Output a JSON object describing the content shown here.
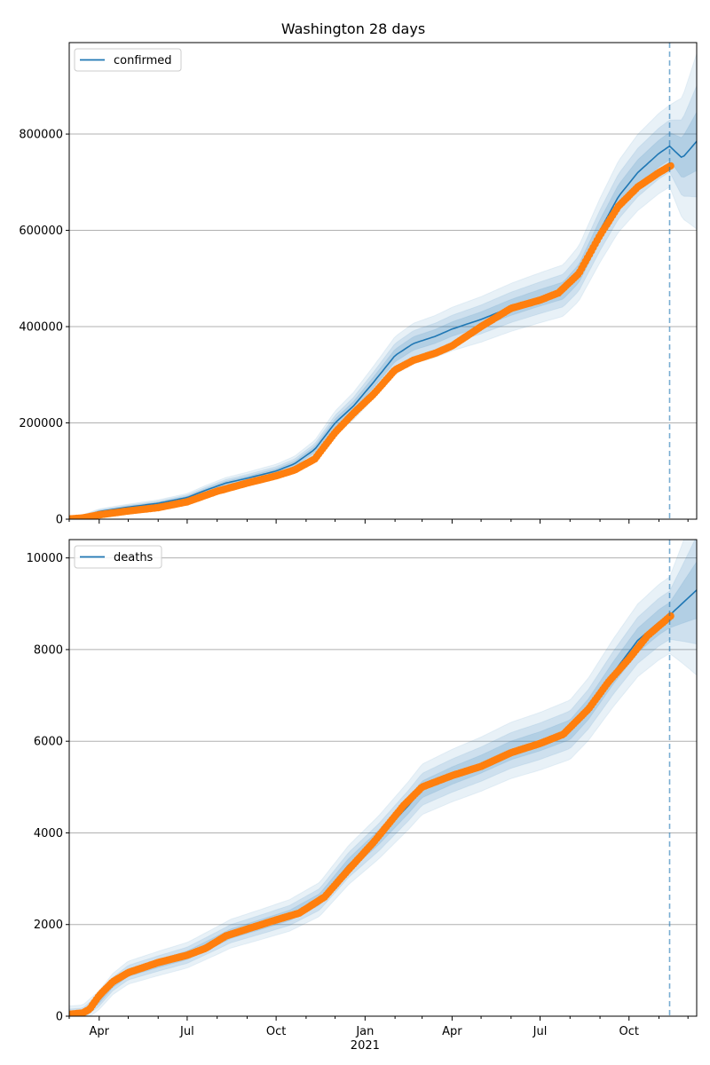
{
  "figure_title": "Washington 28 days",
  "colors": {
    "model": "#1f77b4",
    "observed": "#ff7f0e",
    "band": "#1f77b4",
    "grid": "#b0b0b0"
  },
  "chart_data": [
    {
      "type": "line",
      "name": "confirmed-panel",
      "legend": [
        "confirmed"
      ],
      "legend_position": "top-left",
      "grid": "y",
      "x_range": [
        "2020-03-01",
        "2021-12-10"
      ],
      "ylim": [
        0,
        990000
      ],
      "y_ticks": [
        0,
        200000,
        400000,
        600000,
        800000
      ],
      "y_tick_labels": [
        "0",
        "200000",
        "400000",
        "600000",
        "800000"
      ],
      "forecast_start": "2021-11-12",
      "model": {
        "name": "confirmed",
        "points": [
          [
            "2020-03-01",
            800
          ],
          [
            "2020-03-15",
            5000
          ],
          [
            "2020-04-01",
            16000
          ],
          [
            "2020-05-01",
            25000
          ],
          [
            "2020-06-01",
            33000
          ],
          [
            "2020-07-01",
            45000
          ],
          [
            "2020-07-20",
            60000
          ],
          [
            "2020-08-10",
            75000
          ],
          [
            "2020-09-01",
            85000
          ],
          [
            "2020-10-01",
            100000
          ],
          [
            "2020-10-20",
            115000
          ],
          [
            "2020-11-10",
            145000
          ],
          [
            "2020-12-01",
            200000
          ],
          [
            "2020-12-20",
            235000
          ],
          [
            "2021-01-10",
            285000
          ],
          [
            "2021-02-01",
            340000
          ],
          [
            "2021-02-20",
            365000
          ],
          [
            "2021-03-15",
            380000
          ],
          [
            "2021-04-01",
            395000
          ],
          [
            "2021-05-01",
            415000
          ],
          [
            "2021-06-01",
            440000
          ],
          [
            "2021-07-01",
            460000
          ],
          [
            "2021-07-25",
            475000
          ],
          [
            "2021-08-10",
            510000
          ],
          [
            "2021-09-01",
            600000
          ],
          [
            "2021-09-20",
            670000
          ],
          [
            "2021-10-10",
            720000
          ],
          [
            "2021-11-01",
            760000
          ],
          [
            "2021-11-12",
            775000
          ],
          [
            "2021-11-25",
            750000
          ],
          [
            "2021-12-10",
            785000
          ]
        ]
      },
      "observed": {
        "points": [
          [
            "2020-03-01",
            500
          ],
          [
            "2020-03-15",
            2500
          ],
          [
            "2020-04-01",
            9000
          ],
          [
            "2020-05-01",
            17000
          ],
          [
            "2020-06-01",
            24000
          ],
          [
            "2020-07-01",
            36000
          ],
          [
            "2020-08-01",
            58000
          ],
          [
            "2020-09-01",
            75000
          ],
          [
            "2020-10-01",
            90000
          ],
          [
            "2020-10-20",
            102000
          ],
          [
            "2020-11-10",
            125000
          ],
          [
            "2020-12-01",
            180000
          ],
          [
            "2020-12-20",
            220000
          ],
          [
            "2021-01-10",
            260000
          ],
          [
            "2021-02-01",
            310000
          ],
          [
            "2021-02-20",
            330000
          ],
          [
            "2021-03-15",
            345000
          ],
          [
            "2021-04-01",
            360000
          ],
          [
            "2021-05-01",
            400000
          ],
          [
            "2021-06-01",
            438000
          ],
          [
            "2021-07-01",
            455000
          ],
          [
            "2021-07-20",
            470000
          ],
          [
            "2021-08-10",
            510000
          ],
          [
            "2021-09-01",
            590000
          ],
          [
            "2021-09-20",
            650000
          ],
          [
            "2021-10-10",
            690000
          ],
          [
            "2021-11-01",
            720000
          ],
          [
            "2021-11-14",
            735000
          ]
        ]
      }
    },
    {
      "type": "line",
      "name": "deaths-panel",
      "legend": [
        "deaths"
      ],
      "legend_position": "top-left",
      "grid": "y",
      "x_range": [
        "2020-03-01",
        "2021-12-10"
      ],
      "ylim": [
        0,
        10400
      ],
      "y_ticks": [
        0,
        2000,
        4000,
        6000,
        8000,
        10000
      ],
      "y_tick_labels": [
        "0",
        "2000",
        "4000",
        "6000",
        "8000",
        "10000"
      ],
      "x_tick_labels": [
        "Apr",
        "Jul",
        "Oct",
        "Jan",
        "Apr",
        "Jul",
        "Oct"
      ],
      "x_year_label": "2021",
      "forecast_start": "2021-11-12",
      "model": {
        "name": "deaths",
        "points": [
          [
            "2020-03-01",
            40
          ],
          [
            "2020-03-15",
            60
          ],
          [
            "2020-04-01",
            350
          ],
          [
            "2020-04-15",
            700
          ],
          [
            "2020-05-01",
            950
          ],
          [
            "2020-06-01",
            1150
          ],
          [
            "2020-07-01",
            1330
          ],
          [
            "2020-08-01",
            1650
          ],
          [
            "2020-08-15",
            1800
          ],
          [
            "2020-09-15",
            2000
          ],
          [
            "2020-10-15",
            2200
          ],
          [
            "2020-11-15",
            2550
          ],
          [
            "2020-12-15",
            3300
          ],
          [
            "2021-01-15",
            3900
          ],
          [
            "2021-02-15",
            4600
          ],
          [
            "2021-03-01",
            4950
          ],
          [
            "2021-04-01",
            5250
          ],
          [
            "2021-05-01",
            5500
          ],
          [
            "2021-06-01",
            5800
          ],
          [
            "2021-07-01",
            6000
          ],
          [
            "2021-08-01",
            6250
          ],
          [
            "2021-08-20",
            6700
          ],
          [
            "2021-09-15",
            7500
          ],
          [
            "2021-10-10",
            8200
          ],
          [
            "2021-11-01",
            8600
          ],
          [
            "2021-11-12",
            8750
          ],
          [
            "2021-12-10",
            9300
          ]
        ]
      },
      "observed": {
        "points": [
          [
            "2020-03-01",
            40
          ],
          [
            "2020-03-15",
            70
          ],
          [
            "2020-03-22",
            150
          ],
          [
            "2020-04-01",
            450
          ],
          [
            "2020-04-15",
            750
          ],
          [
            "2020-05-01",
            950
          ],
          [
            "2020-06-01",
            1170
          ],
          [
            "2020-07-01",
            1330
          ],
          [
            "2020-07-20",
            1480
          ],
          [
            "2020-08-10",
            1750
          ],
          [
            "2020-09-01",
            1900
          ],
          [
            "2020-10-01",
            2100
          ],
          [
            "2020-10-25",
            2250
          ],
          [
            "2020-11-20",
            2600
          ],
          [
            "2020-12-15",
            3200
          ],
          [
            "2021-01-10",
            3800
          ],
          [
            "2021-02-10",
            4600
          ],
          [
            "2021-03-01",
            5000
          ],
          [
            "2021-04-01",
            5250
          ],
          [
            "2021-05-01",
            5450
          ],
          [
            "2021-06-01",
            5750
          ],
          [
            "2021-07-01",
            5950
          ],
          [
            "2021-07-25",
            6150
          ],
          [
            "2021-08-20",
            6700
          ],
          [
            "2021-09-10",
            7300
          ],
          [
            "2021-10-01",
            7800
          ],
          [
            "2021-10-20",
            8300
          ],
          [
            "2021-11-14",
            8750
          ]
        ]
      }
    }
  ]
}
